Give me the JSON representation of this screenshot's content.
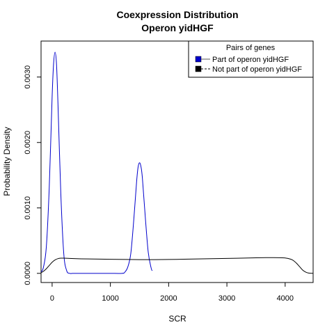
{
  "chart_data": {
    "type": "line",
    "title": "Coexpression Distribution",
    "subtitle": "Operon yidHGF",
    "xlabel": "SCR",
    "ylabel": "Probability Density",
    "xlim": [
      -190,
      4480
    ],
    "ylim": [
      -0.00014,
      0.00355
    ],
    "x_ticks": [
      0,
      1000,
      2000,
      3000,
      4000
    ],
    "x_tick_labels": [
      "0",
      "1000",
      "2000",
      "3000",
      "4000"
    ],
    "y_ticks": [
      0,
      0.001,
      0.002,
      0.003
    ],
    "y_tick_labels": [
      "0.0000",
      "0.0010",
      "0.0020",
      "0.0030"
    ],
    "grid": false,
    "legend": {
      "title": "Pairs of genes",
      "placement": "top-right",
      "entries": [
        {
          "label": "Part of operon yidHGF",
          "color": "#0000cc"
        },
        {
          "label": "Not part of operon yidHGF",
          "color": "#000000"
        }
      ]
    },
    "series": [
      {
        "name": "Part of operon yidHGF",
        "color": "#0000cc",
        "x": [
          -190,
          -150,
          -100,
          -50,
          0,
          25,
          50,
          75,
          100,
          150,
          200,
          250,
          300,
          350,
          400,
          600,
          800,
          1000,
          1200,
          1250,
          1300,
          1350,
          1400,
          1450,
          1475,
          1500,
          1525,
          1550,
          1600,
          1650,
          1700,
          1720
        ],
        "y": [
          2e-05,
          9e-05,
          0.0004,
          0.0013,
          0.0027,
          0.0032,
          0.00338,
          0.0032,
          0.0026,
          0.0012,
          0.0003,
          4e-05,
          0.0,
          0.0,
          0.0,
          0.0,
          0.0,
          0.0,
          0.0,
          2e-05,
          0.0001,
          0.0003,
          0.0008,
          0.0014,
          0.00162,
          0.00169,
          0.00163,
          0.00145,
          0.00085,
          0.00032,
          8e-05,
          4e-05
        ]
      },
      {
        "name": "Not part of operon yidHGF",
        "color": "#000000",
        "x": [
          -190,
          -150,
          -100,
          -50,
          0,
          50,
          100,
          150,
          200,
          300,
          500,
          1000,
          1500,
          2000,
          2500,
          3000,
          3500,
          3800,
          4000,
          4100,
          4150,
          4200,
          4250,
          4300,
          4350,
          4400,
          4480
        ],
        "y": [
          1e-05,
          3e-05,
          7e-05,
          0.00012,
          0.00017,
          0.000205,
          0.000225,
          0.000232,
          0.000232,
          0.000228,
          0.000222,
          0.000215,
          0.00021,
          0.000212,
          0.00022,
          0.000228,
          0.000238,
          0.00024,
          0.000235,
          0.000215,
          0.00019,
          0.00015,
          0.0001,
          5e-05,
          2e-05,
          5e-06,
          0.0
        ]
      }
    ]
  }
}
